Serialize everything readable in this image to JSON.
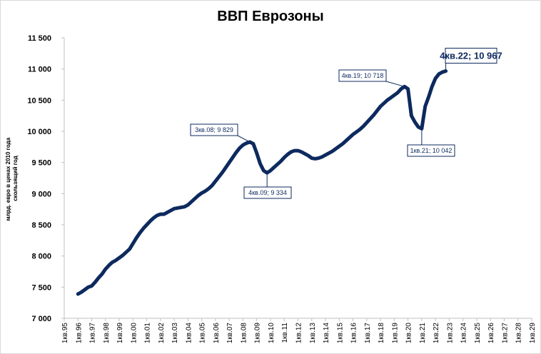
{
  "chart_data": {
    "type": "line",
    "title": "ВВП Еврозоны",
    "y_label": [
      "млрд. евро в ценах 2010 года",
      "скользящий год"
    ],
    "categories": [
      "1кв.95",
      null,
      null,
      null,
      "1кв.96",
      null,
      null,
      null,
      "1кв.97",
      null,
      null,
      null,
      "1кв.98",
      null,
      null,
      null,
      "1кв.99",
      null,
      null,
      null,
      "1кв.00",
      null,
      null,
      null,
      "1кв.01",
      null,
      null,
      null,
      "1кв.02",
      null,
      null,
      null,
      "1кв.03",
      null,
      null,
      null,
      "1кв.04",
      null,
      null,
      null,
      "1кв.05",
      null,
      null,
      null,
      "1кв.06",
      null,
      null,
      null,
      "1кв.07",
      null,
      null,
      null,
      "1кв.08",
      null,
      null,
      null,
      "1кв.09",
      null,
      null,
      null,
      "1кв.10",
      null,
      null,
      null,
      "1кв.11",
      null,
      null,
      null,
      "1кв.12",
      null,
      null,
      null,
      "1кв.13",
      null,
      null,
      null,
      "1кв.14",
      null,
      null,
      null,
      "1кв.15",
      null,
      null,
      null,
      "1кв.16",
      null,
      null,
      null,
      "1кв.17",
      null,
      null,
      null,
      "1кв.18",
      null,
      null,
      null,
      "1кв.19",
      null,
      null,
      null,
      "1кв.20",
      null,
      null,
      null,
      "1кв.21",
      null,
      null,
      null,
      "1кв.22",
      null,
      null,
      null,
      "1кв.23",
      null,
      null,
      null,
      "1кв.24",
      null,
      null,
      null,
      "1кв.25",
      null,
      null,
      null,
      "1кв.26",
      null,
      null,
      null,
      "1кв.27",
      null,
      null,
      null,
      "1кв.28",
      null,
      null,
      null,
      "1кв.29"
    ],
    "series": [
      {
        "name": "ВВП",
        "color": "#0d2a5e",
        "values": [
          null,
          null,
          null,
          null,
          7390,
          7420,
          7460,
          7500,
          7520,
          7580,
          7650,
          7710,
          7790,
          7850,
          7900,
          7930,
          7970,
          8010,
          8060,
          8110,
          8200,
          8290,
          8370,
          8440,
          8500,
          8560,
          8610,
          8650,
          8670,
          8670,
          8700,
          8730,
          8760,
          8770,
          8780,
          8790,
          8820,
          8870,
          8920,
          8970,
          9010,
          9040,
          9080,
          9130,
          9200,
          9270,
          9340,
          9420,
          9500,
          9580,
          9660,
          9730,
          9780,
          9810,
          9829,
          9800,
          9650,
          9480,
          9370,
          9334,
          9370,
          9420,
          9470,
          9520,
          9580,
          9630,
          9670,
          9690,
          9690,
          9670,
          9640,
          9610,
          9570,
          9560,
          9570,
          9590,
          9620,
          9650,
          9680,
          9720,
          9760,
          9800,
          9850,
          9900,
          9950,
          9990,
          10030,
          10080,
          10140,
          10200,
          10260,
          10330,
          10400,
          10450,
          10500,
          10540,
          10580,
          10620,
          10680,
          10718,
          10680,
          10250,
          10150,
          10070,
          10042,
          10400,
          10550,
          10720,
          10850,
          10920,
          10950,
          10967,
          null,
          null,
          null,
          null,
          null,
          null,
          null,
          null,
          null,
          null,
          null,
          null,
          null,
          null,
          null,
          null,
          null,
          null,
          null,
          null,
          null,
          null,
          null,
          null,
          null
        ]
      }
    ],
    "ylim": [
      7000,
      11500
    ],
    "yticks": [
      {
        "value": 7000,
        "label": "7 000"
      },
      {
        "value": 7500,
        "label": "7 500"
      },
      {
        "value": 8000,
        "label": "8 000"
      },
      {
        "value": 8500,
        "label": "8 500"
      },
      {
        "value": 9000,
        "label": "9 000"
      },
      {
        "value": 9500,
        "label": "9 500"
      },
      {
        "value": 10000,
        "label": "10 000"
      },
      {
        "value": 10500,
        "label": "10 500"
      },
      {
        "value": 11000,
        "label": "11 000"
      },
      {
        "value": 11500,
        "label": "11 500"
      }
    ],
    "annotations": [
      "3кв.08; 9 829",
      "4кв.09; 9 334",
      "4кв.19; 10 718",
      "1кв.21; 10 042",
      "4кв.22; 10 967"
    ]
  }
}
